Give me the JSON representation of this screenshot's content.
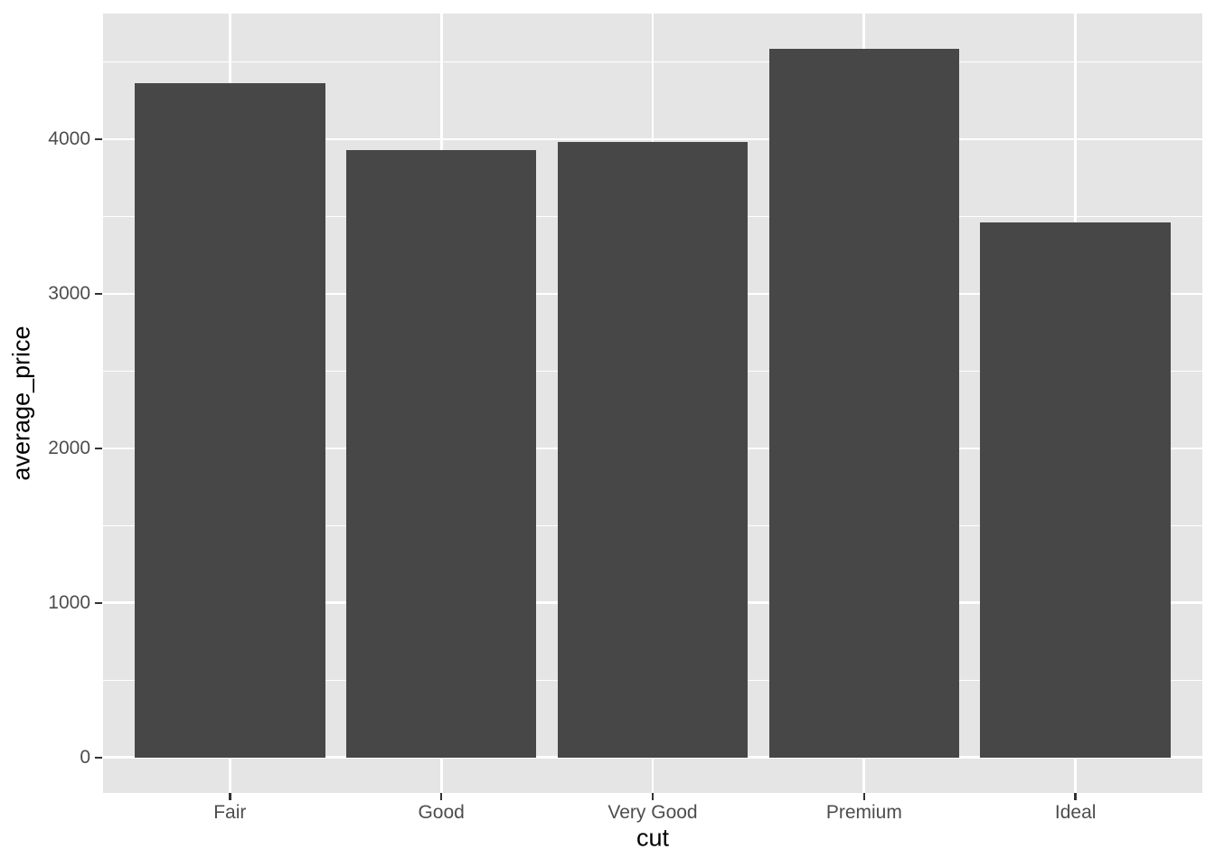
{
  "chart_data": {
    "type": "bar",
    "xlabel": "cut",
    "ylabel": "average_price",
    "categories": [
      "Fair",
      "Good",
      "Very Good",
      "Premium",
      "Ideal"
    ],
    "values": [
      4360,
      3930,
      3980,
      4585,
      3460
    ],
    "y_major_ticks": [
      0,
      1000,
      2000,
      3000,
      4000
    ],
    "y_minor_gridlines": [
      500,
      1500,
      2500,
      3500,
      4500
    ],
    "ylim": [
      -229,
      4813
    ],
    "grid": "on",
    "legend": "none",
    "style": "ggplot2-theme-grey",
    "colors": {
      "bar_fill": "#474747",
      "panel_background": "#E5E5E5",
      "gridline": "#FFFFFF",
      "tick_label": "#4D4D4D",
      "axis_title": "#000000",
      "tick_mark": "#333333",
      "figure_background": "#FFFFFF"
    }
  }
}
